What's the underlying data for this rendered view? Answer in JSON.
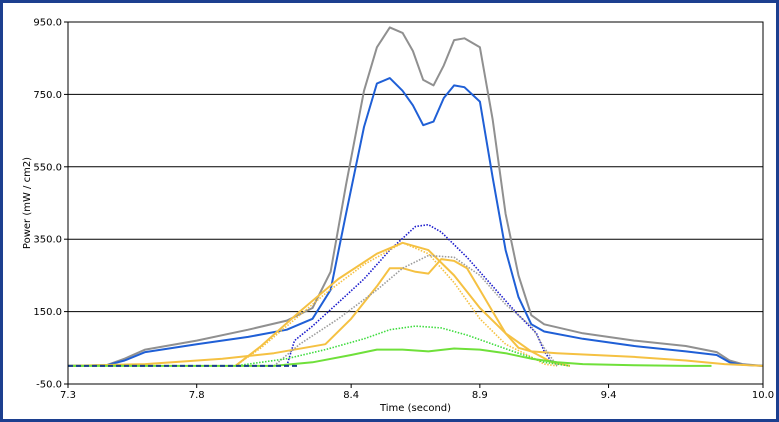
{
  "chart_data": {
    "type": "line",
    "xlabel": "Time (second)",
    "ylabel": "Power (mW / cm2)",
    "xlim": [
      7.3,
      10.0
    ],
    "ylim": [
      -50,
      950
    ],
    "xticks": [
      "7.3",
      "7.8",
      "8.4",
      "8.9",
      "9.4",
      "10.0"
    ],
    "xtick_values": [
      7.3,
      7.8,
      8.4,
      8.9,
      9.4,
      10.0
    ],
    "yticks": [
      "950.0",
      "750.0",
      "550.0",
      "350.0",
      "150.0",
      "-50.0"
    ],
    "ytick_values": [
      950,
      750,
      550,
      350,
      150,
      -50
    ],
    "grid": "horizontal",
    "series": [
      {
        "color": "#909090",
        "style": "solid",
        "x": [
          7.3,
          7.45,
          7.52,
          7.6,
          7.8,
          8.0,
          8.15,
          8.25,
          8.32,
          8.38,
          8.45,
          8.5,
          8.55,
          8.6,
          8.64,
          8.68,
          8.72,
          8.76,
          8.8,
          8.84,
          8.9,
          8.95,
          9.0,
          9.05,
          9.1,
          9.15,
          9.3,
          9.5,
          9.7,
          9.82,
          9.87,
          9.92,
          10.0
        ],
        "y": [
          0,
          2,
          20,
          45,
          70,
          100,
          125,
          160,
          260,
          500,
          760,
          880,
          935,
          920,
          870,
          790,
          775,
          830,
          900,
          905,
          880,
          680,
          420,
          250,
          140,
          115,
          90,
          70,
          55,
          38,
          15,
          5,
          0
        ]
      },
      {
        "color": "#1f5fd6",
        "style": "solid",
        "x": [
          7.3,
          7.45,
          7.52,
          7.6,
          7.8,
          8.0,
          8.15,
          8.25,
          8.32,
          8.38,
          8.45,
          8.5,
          8.55,
          8.6,
          8.64,
          8.68,
          8.72,
          8.76,
          8.8,
          8.84,
          8.9,
          8.95,
          9.0,
          9.05,
          9.1,
          9.15,
          9.3,
          9.5,
          9.7,
          9.82,
          9.87,
          9.92,
          10.0
        ],
        "y": [
          0,
          2,
          15,
          38,
          60,
          80,
          100,
          130,
          210,
          420,
          660,
          780,
          795,
          760,
          720,
          665,
          675,
          740,
          775,
          770,
          730,
          520,
          320,
          190,
          115,
          95,
          75,
          55,
          40,
          30,
          10,
          3,
          0
        ]
      },
      {
        "color": "#1a1acc",
        "style": "dotted",
        "x": [
          8.15,
          8.18,
          8.25,
          8.35,
          8.45,
          8.55,
          8.65,
          8.7,
          8.75,
          8.85,
          8.95,
          9.05,
          9.12,
          9.15,
          9.18,
          9.25
        ],
        "y": [
          0,
          70,
          110,
          175,
          240,
          320,
          385,
          390,
          370,
          300,
          220,
          140,
          90,
          40,
          10,
          0
        ]
      },
      {
        "color": "#f5c142",
        "style": "solid",
        "x": [
          7.3,
          7.6,
          7.9,
          8.1,
          8.3,
          8.4,
          8.5,
          8.55,
          8.6,
          8.65,
          8.7,
          8.75,
          8.8,
          8.85,
          8.9,
          8.95,
          9.0,
          9.05,
          9.1,
          9.2,
          9.5,
          9.7,
          9.85,
          10.0
        ],
        "y": [
          0,
          5,
          20,
          35,
          60,
          130,
          220,
          270,
          270,
          260,
          255,
          295,
          290,
          270,
          210,
          150,
          90,
          50,
          40,
          35,
          25,
          15,
          5,
          0
        ]
      },
      {
        "color": "#f5c142",
        "style": "dotted",
        "x": [
          7.95,
          8.05,
          8.15,
          8.3,
          8.45,
          8.6,
          8.7,
          8.8,
          8.9,
          9.0,
          9.1,
          9.15,
          9.2
        ],
        "y": [
          0,
          50,
          110,
          200,
          280,
          340,
          310,
          230,
          130,
          60,
          25,
          5,
          0
        ]
      },
      {
        "color": "#f5c142",
        "style": "solid",
        "x": [
          7.95,
          8.05,
          8.2,
          8.35,
          8.5,
          8.6,
          8.7,
          8.8,
          8.9,
          9.0,
          9.1,
          9.18,
          9.25
        ],
        "y": [
          0,
          55,
          150,
          240,
          310,
          340,
          320,
          250,
          160,
          90,
          40,
          10,
          0
        ]
      },
      {
        "color": "#9c9c9c",
        "style": "dotted",
        "x": [
          8.1,
          8.2,
          8.35,
          8.5,
          8.6,
          8.7,
          8.8,
          8.9,
          9.0,
          9.1,
          9.15,
          9.2
        ],
        "y": [
          0,
          60,
          130,
          210,
          270,
          305,
          300,
          250,
          170,
          110,
          50,
          0
        ]
      },
      {
        "color": "#3fdc3f",
        "style": "dotted",
        "x": [
          7.95,
          8.15,
          8.3,
          8.45,
          8.55,
          8.65,
          8.75,
          8.85,
          8.95,
          9.05,
          9.15,
          9.25
        ],
        "y": [
          0,
          20,
          45,
          75,
          100,
          110,
          105,
          85,
          60,
          35,
          10,
          0
        ]
      },
      {
        "color": "#6fe03a",
        "style": "solid",
        "x": [
          7.3,
          8.1,
          8.25,
          8.4,
          8.5,
          8.6,
          8.7,
          8.8,
          8.9,
          9.0,
          9.1,
          9.2,
          9.3,
          9.5,
          9.7,
          9.8
        ],
        "y": [
          0,
          0,
          10,
          30,
          45,
          45,
          40,
          48,
          45,
          35,
          20,
          10,
          5,
          2,
          0,
          0
        ]
      },
      {
        "color": "#1c3f8f",
        "style": "dashed",
        "x": [
          7.3,
          7.55,
          7.8,
          8.0,
          8.1,
          8.2
        ],
        "y": [
          0,
          0,
          0,
          0,
          0,
          0
        ]
      }
    ]
  }
}
